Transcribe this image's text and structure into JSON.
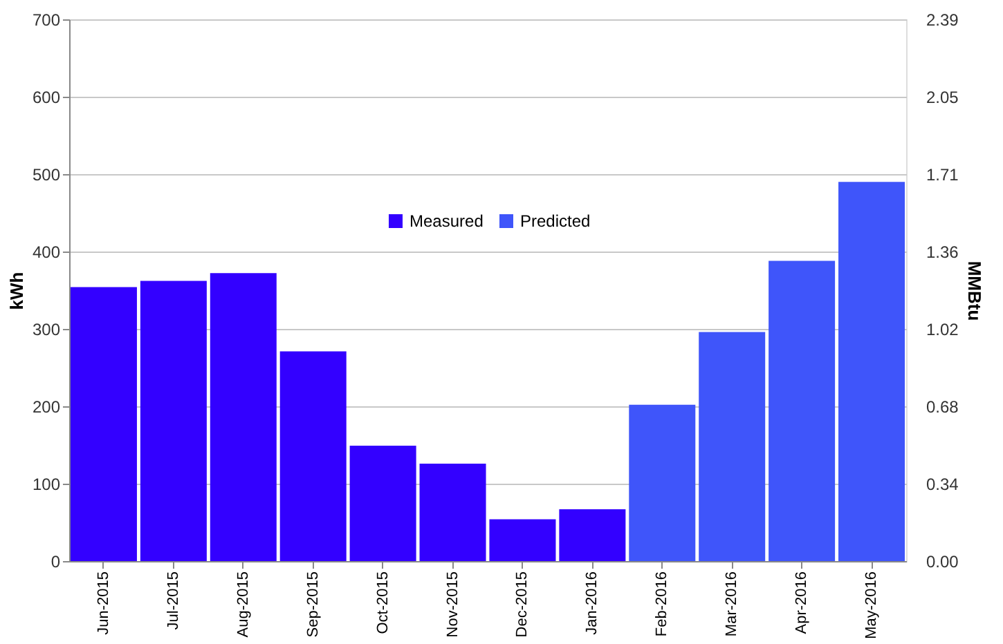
{
  "chart_data": {
    "type": "bar",
    "categories": [
      "Jun-2015",
      "Jul-2015",
      "Aug-2015",
      "Sep-2015",
      "Oct-2015",
      "Nov-2015",
      "Dec-2015",
      "Jan-2016",
      "Feb-2016",
      "Mar-2016",
      "Apr-2016",
      "May-2016"
    ],
    "series": [
      {
        "name": "Measured",
        "color": "#3300ff",
        "values": [
          354,
          362,
          372,
          271,
          149,
          126,
          54,
          67,
          null,
          null,
          null,
          null
        ]
      },
      {
        "name": "Predicted",
        "color": "#3f55fa",
        "values": [
          null,
          null,
          null,
          null,
          null,
          null,
          null,
          null,
          202,
          296,
          388,
          490
        ]
      }
    ],
    "ylabel": "kWh",
    "y2label": "MMBtu",
    "ylim": [
      0,
      700
    ],
    "yticks": [
      0,
      100,
      200,
      300,
      400,
      500,
      600,
      700
    ],
    "y2lim": [
      0,
      2.3884
    ],
    "y2ticks": [
      {
        "value": 0,
        "label": "0.00"
      },
      {
        "value": 0.3412,
        "label": "0.34"
      },
      {
        "value": 0.6824,
        "label": "0.68"
      },
      {
        "value": 1.0236,
        "label": "1.02"
      },
      {
        "value": 1.3648,
        "label": "1.36"
      },
      {
        "value": 1.706,
        "label": "1.71"
      },
      {
        "value": 2.0472,
        "label": "2.05"
      },
      {
        "value": 2.3884,
        "label": "2.39"
      }
    ],
    "grid": "y",
    "legend": "top"
  }
}
